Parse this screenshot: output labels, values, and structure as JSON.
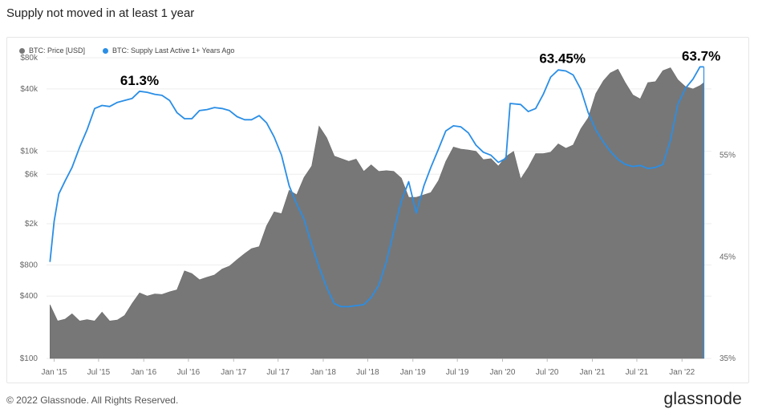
{
  "title": "Supply not moved in at least 1 year",
  "footer": {
    "copyright": "© 2022 Glassnode. All Rights Reserved.",
    "logo": "glassnode"
  },
  "colors": {
    "price": "#777777",
    "supply": "#2a8ee6",
    "grid": "#eeeeee",
    "axis_text": "#666666"
  },
  "chart_data": {
    "type": "area",
    "log_y_left": true,
    "x_ticks": [
      "Jan '15",
      "Jul '15",
      "Jan '16",
      "Jul '16",
      "Jan '17",
      "Jul '17",
      "Jan '18",
      "Jul '18",
      "Jan '19",
      "Jul '19",
      "Jan '20",
      "Jul '20",
      "Jan '21",
      "Jul '21",
      "Jan '22"
    ],
    "y_left_ticks": [
      {
        "label": "$80k",
        "value": 80000
      },
      {
        "label": "$40k",
        "value": 40000
      },
      {
        "label": "$10k",
        "value": 10000
      },
      {
        "label": "$6k",
        "value": 6000
      },
      {
        "label": "$2k",
        "value": 2000
      },
      {
        "label": "$800",
        "value": 800
      },
      {
        "label": "$400",
        "value": 400
      },
      {
        "label": "$100",
        "value": 100
      }
    ],
    "y_right_ticks": [
      {
        "label": "55%",
        "value": 55
      },
      {
        "label": "45%",
        "value": 45
      },
      {
        "label": "35%",
        "value": 35
      }
    ],
    "y_left_range": [
      100,
      80000
    ],
    "y_right_range": [
      35,
      64.6
    ],
    "x_range": [
      "2014-12-01",
      "2022-05-01"
    ],
    "legend": [
      "BTC: Price [USD]",
      "BTC: Supply Last Active 1+ Years Ago"
    ],
    "annotations": [
      {
        "text": "61.3%",
        "x": "2015-12-15",
        "value": 61.3
      },
      {
        "text": "63.45%",
        "x": "2020-09-01",
        "value": 63.45
      },
      {
        "text": "63.7%",
        "x": "2022-03-20",
        "value": 63.7
      }
    ],
    "series": [
      {
        "name": "BTC: Price [USD]",
        "axis": "left",
        "points": [
          [
            "2014-12-15",
            330
          ],
          [
            "2015-01-15",
            230
          ],
          [
            "2015-02-15",
            240
          ],
          [
            "2015-03-15",
            270
          ],
          [
            "2015-04-15",
            230
          ],
          [
            "2015-05-15",
            237
          ],
          [
            "2015-06-15",
            230
          ],
          [
            "2015-07-15",
            280
          ],
          [
            "2015-08-15",
            230
          ],
          [
            "2015-09-15",
            235
          ],
          [
            "2015-10-15",
            260
          ],
          [
            "2015-11-15",
            340
          ],
          [
            "2015-12-15",
            430
          ],
          [
            "2016-01-15",
            400
          ],
          [
            "2016-02-15",
            420
          ],
          [
            "2016-03-15",
            415
          ],
          [
            "2016-04-15",
            440
          ],
          [
            "2016-05-15",
            460
          ],
          [
            "2016-06-15",
            700
          ],
          [
            "2016-07-15",
            660
          ],
          [
            "2016-08-15",
            575
          ],
          [
            "2016-09-15",
            610
          ],
          [
            "2016-10-15",
            640
          ],
          [
            "2016-11-15",
            730
          ],
          [
            "2016-12-15",
            780
          ],
          [
            "2017-01-15",
            900
          ],
          [
            "2017-02-15",
            1030
          ],
          [
            "2017-03-15",
            1150
          ],
          [
            "2017-04-15",
            1200
          ],
          [
            "2017-05-15",
            1900
          ],
          [
            "2017-06-15",
            2600
          ],
          [
            "2017-07-15",
            2500
          ],
          [
            "2017-08-15",
            4200
          ],
          [
            "2017-09-15",
            3800
          ],
          [
            "2017-10-15",
            5600
          ],
          [
            "2017-11-15",
            7200
          ],
          [
            "2017-12-15",
            17500
          ],
          [
            "2018-01-15",
            13500
          ],
          [
            "2018-02-15",
            9000
          ],
          [
            "2018-03-15",
            8500
          ],
          [
            "2018-04-15",
            8000
          ],
          [
            "2018-05-15",
            8400
          ],
          [
            "2018-06-15",
            6400
          ],
          [
            "2018-07-15",
            7400
          ],
          [
            "2018-08-15",
            6400
          ],
          [
            "2018-09-15",
            6500
          ],
          [
            "2018-10-15",
            6400
          ],
          [
            "2018-11-15",
            5500
          ],
          [
            "2018-12-15",
            3600
          ],
          [
            "2019-01-15",
            3600
          ],
          [
            "2019-02-15",
            3800
          ],
          [
            "2019-03-15",
            4000
          ],
          [
            "2019-04-15",
            5200
          ],
          [
            "2019-05-15",
            8000
          ],
          [
            "2019-06-15",
            11000
          ],
          [
            "2019-07-15",
            10500
          ],
          [
            "2019-08-15",
            10300
          ],
          [
            "2019-09-15",
            10000
          ],
          [
            "2019-10-15",
            8300
          ],
          [
            "2019-11-15",
            8500
          ],
          [
            "2019-12-15",
            7200
          ],
          [
            "2020-01-15",
            8900
          ],
          [
            "2020-02-15",
            10000
          ],
          [
            "2020-03-15",
            5400
          ],
          [
            "2020-04-15",
            7000
          ],
          [
            "2020-05-15",
            9500
          ],
          [
            "2020-06-15",
            9500
          ],
          [
            "2020-07-15",
            9800
          ],
          [
            "2020-08-15",
            11800
          ],
          [
            "2020-09-15",
            10700
          ],
          [
            "2020-10-15",
            11500
          ],
          [
            "2020-11-15",
            16500
          ],
          [
            "2020-12-15",
            21000
          ],
          [
            "2021-01-15",
            36000
          ],
          [
            "2021-02-15",
            48000
          ],
          [
            "2021-03-15",
            57000
          ],
          [
            "2021-04-15",
            62000
          ],
          [
            "2021-05-15",
            46000
          ],
          [
            "2021-06-15",
            35000
          ],
          [
            "2021-07-15",
            32000
          ],
          [
            "2021-08-15",
            46000
          ],
          [
            "2021-09-15",
            47000
          ],
          [
            "2021-10-15",
            60000
          ],
          [
            "2021-11-15",
            64000
          ],
          [
            "2021-12-15",
            49000
          ],
          [
            "2022-01-15",
            42000
          ],
          [
            "2022-02-15",
            40000
          ],
          [
            "2022-03-15",
            43000
          ],
          [
            "2022-03-31",
            46000
          ]
        ]
      },
      {
        "name": "BTC: Supply Last Active 1+ Years Ago",
        "axis": "right",
        "points": [
          [
            "2014-12-15",
            44.5
          ],
          [
            "2015-01-01",
            48.5
          ],
          [
            "2015-01-20",
            51.2
          ],
          [
            "2015-02-15",
            52.5
          ],
          [
            "2015-03-15",
            53.8
          ],
          [
            "2015-04-15",
            55.8
          ],
          [
            "2015-05-15",
            57.5
          ],
          [
            "2015-06-15",
            59.6
          ],
          [
            "2015-07-15",
            59.9
          ],
          [
            "2015-08-15",
            59.8
          ],
          [
            "2015-09-15",
            60.2
          ],
          [
            "2015-10-15",
            60.4
          ],
          [
            "2015-11-15",
            60.6
          ],
          [
            "2015-12-15",
            61.3
          ],
          [
            "2016-01-15",
            61.2
          ],
          [
            "2016-02-15",
            61.0
          ],
          [
            "2016-03-15",
            60.9
          ],
          [
            "2016-04-15",
            60.4
          ],
          [
            "2016-05-15",
            59.2
          ],
          [
            "2016-06-15",
            58.6
          ],
          [
            "2016-07-15",
            58.6
          ],
          [
            "2016-08-15",
            59.4
          ],
          [
            "2016-09-15",
            59.5
          ],
          [
            "2016-10-15",
            59.7
          ],
          [
            "2016-11-15",
            59.6
          ],
          [
            "2016-12-15",
            59.4
          ],
          [
            "2017-01-15",
            58.8
          ],
          [
            "2017-02-15",
            58.5
          ],
          [
            "2017-03-15",
            58.5
          ],
          [
            "2017-04-15",
            58.9
          ],
          [
            "2017-05-15",
            58.2
          ],
          [
            "2017-06-15",
            56.8
          ],
          [
            "2017-07-15",
            55.0
          ],
          [
            "2017-08-15",
            52.0
          ],
          [
            "2017-09-15",
            50.2
          ],
          [
            "2017-10-15",
            48.7
          ],
          [
            "2017-11-15",
            46.2
          ],
          [
            "2017-12-15",
            44.0
          ],
          [
            "2018-01-15",
            42.0
          ],
          [
            "2018-02-15",
            40.4
          ],
          [
            "2018-03-15",
            40.1
          ],
          [
            "2018-04-15",
            40.1
          ],
          [
            "2018-05-15",
            40.2
          ],
          [
            "2018-06-15",
            40.3
          ],
          [
            "2018-07-15",
            41.0
          ],
          [
            "2018-08-15",
            42.2
          ],
          [
            "2018-09-15",
            44.5
          ],
          [
            "2018-10-15",
            47.5
          ],
          [
            "2018-11-15",
            50.5
          ],
          [
            "2018-12-15",
            52.4
          ],
          [
            "2019-01-15",
            49.3
          ],
          [
            "2019-02-15",
            52.0
          ],
          [
            "2019-03-15",
            53.8
          ],
          [
            "2019-04-15",
            55.6
          ],
          [
            "2019-05-15",
            57.4
          ],
          [
            "2019-06-15",
            57.9
          ],
          [
            "2019-07-15",
            57.8
          ],
          [
            "2019-08-15",
            57.2
          ],
          [
            "2019-09-15",
            56.0
          ],
          [
            "2019-10-15",
            55.3
          ],
          [
            "2019-11-15",
            55.0
          ],
          [
            "2019-12-15",
            54.3
          ],
          [
            "2020-01-15",
            54.7
          ],
          [
            "2020-02-01",
            60.1
          ],
          [
            "2020-03-15",
            60.0
          ],
          [
            "2020-04-15",
            59.3
          ],
          [
            "2020-05-15",
            59.6
          ],
          [
            "2020-06-15",
            61.0
          ],
          [
            "2020-07-15",
            62.7
          ],
          [
            "2020-08-15",
            63.4
          ],
          [
            "2020-09-15",
            63.3
          ],
          [
            "2020-10-15",
            62.9
          ],
          [
            "2020-11-15",
            61.5
          ],
          [
            "2020-12-15",
            59.2
          ],
          [
            "2021-01-15",
            57.5
          ],
          [
            "2021-02-15",
            56.3
          ],
          [
            "2021-03-15",
            55.4
          ],
          [
            "2021-04-15",
            54.6
          ],
          [
            "2021-05-15",
            54.1
          ],
          [
            "2021-06-15",
            53.9
          ],
          [
            "2021-07-15",
            54.0
          ],
          [
            "2021-08-15",
            53.7
          ],
          [
            "2021-09-15",
            53.8
          ],
          [
            "2021-10-15",
            54.1
          ],
          [
            "2021-11-15",
            56.5
          ],
          [
            "2021-12-15",
            60.0
          ],
          [
            "2022-01-15",
            61.6
          ],
          [
            "2022-02-15",
            62.5
          ],
          [
            "2022-03-15",
            63.7
          ],
          [
            "2022-03-31",
            63.7
          ]
        ]
      }
    ]
  }
}
